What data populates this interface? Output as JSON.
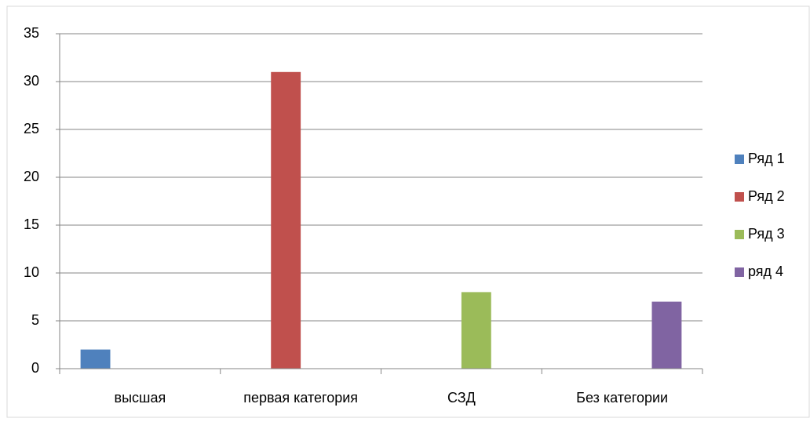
{
  "chart_data": {
    "type": "bar",
    "categories": [
      "высшая",
      "первая категория",
      "СЗД",
      "Без категории"
    ],
    "series": [
      {
        "name": "Ряд 1",
        "color": "#4f81bd",
        "values": [
          2,
          null,
          null,
          null
        ]
      },
      {
        "name": "Ряд 2",
        "color": "#c0504d",
        "values": [
          null,
          31,
          null,
          null
        ]
      },
      {
        "name": "Ряд 3",
        "color": "#9bbb59",
        "values": [
          null,
          null,
          8,
          null
        ]
      },
      {
        "name": "ряд 4",
        "color": "#8064a2",
        "values": [
          null,
          null,
          null,
          7
        ]
      }
    ],
    "ylim": [
      0,
      35
    ],
    "yticks": [
      0,
      5,
      10,
      15,
      20,
      25,
      30,
      35
    ],
    "grid": true,
    "legend": "right"
  }
}
